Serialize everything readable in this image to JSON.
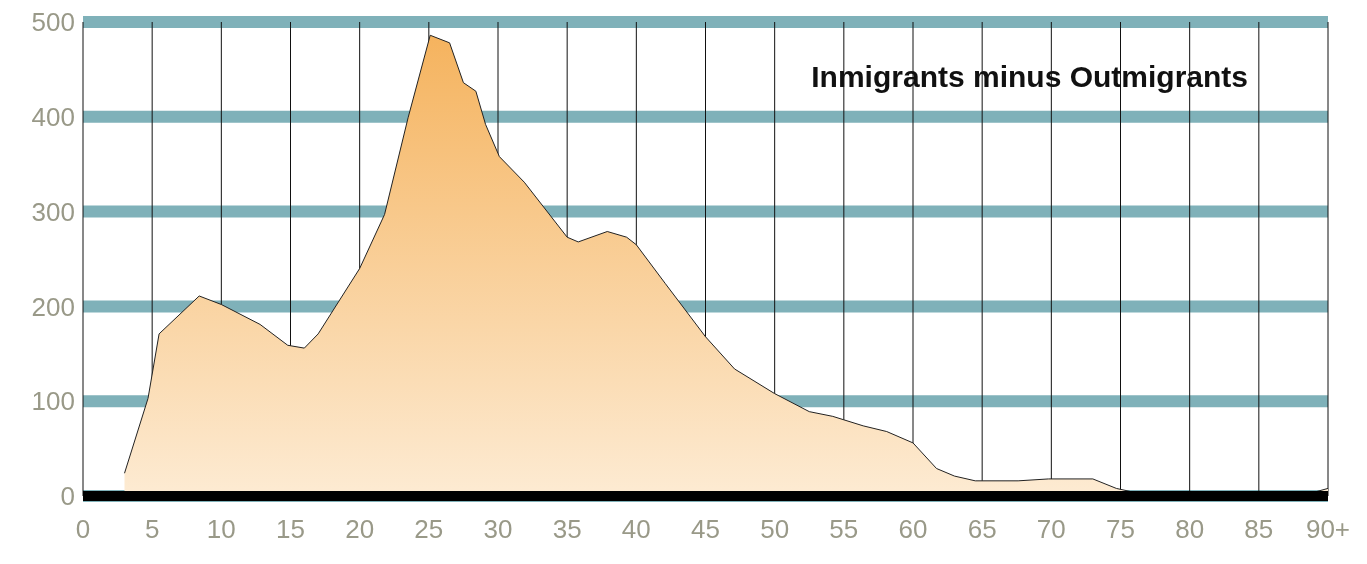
{
  "chart_data": {
    "type": "area",
    "title": "Inmigrants minus Outmigrants",
    "x": [
      3,
      4.7,
      5.5,
      8.4,
      10,
      12.8,
      14.8,
      16,
      17,
      20,
      21.8,
      23.5,
      25.1,
      26.5,
      27.5,
      28.4,
      29.1,
      30.1,
      31.9,
      35,
      35.8,
      37.9,
      39.3,
      40,
      42.1,
      45,
      47.1,
      50,
      52.5,
      54.2,
      56.4,
      58.1,
      60,
      61.7,
      63,
      64.5,
      67.6,
      69.8,
      73,
      74.7,
      77.2,
      80.4,
      84.7,
      88,
      90
    ],
    "values": [
      24,
      103,
      171,
      211,
      202,
      181,
      159,
      156,
      171,
      240,
      297,
      399,
      486,
      478,
      436,
      427,
      392,
      358,
      331,
      273,
      268,
      279,
      273,
      265,
      224,
      168,
      134,
      108,
      89,
      84,
      74,
      68,
      56,
      29,
      21,
      16,
      16,
      18,
      18,
      8,
      0,
      0,
      1,
      0,
      8
    ],
    "color": "#f5b35e",
    "xlim": [
      0,
      90
    ],
    "ylim": [
      0,
      500
    ],
    "xticks": [
      0,
      5,
      10,
      15,
      20,
      25,
      30,
      35,
      40,
      45,
      50,
      55,
      60,
      65,
      70,
      75,
      80,
      85,
      {
        "value": 90,
        "label": "90+"
      }
    ],
    "yticks": [
      0,
      100,
      200,
      300,
      400,
      500
    ],
    "grid": true
  }
}
